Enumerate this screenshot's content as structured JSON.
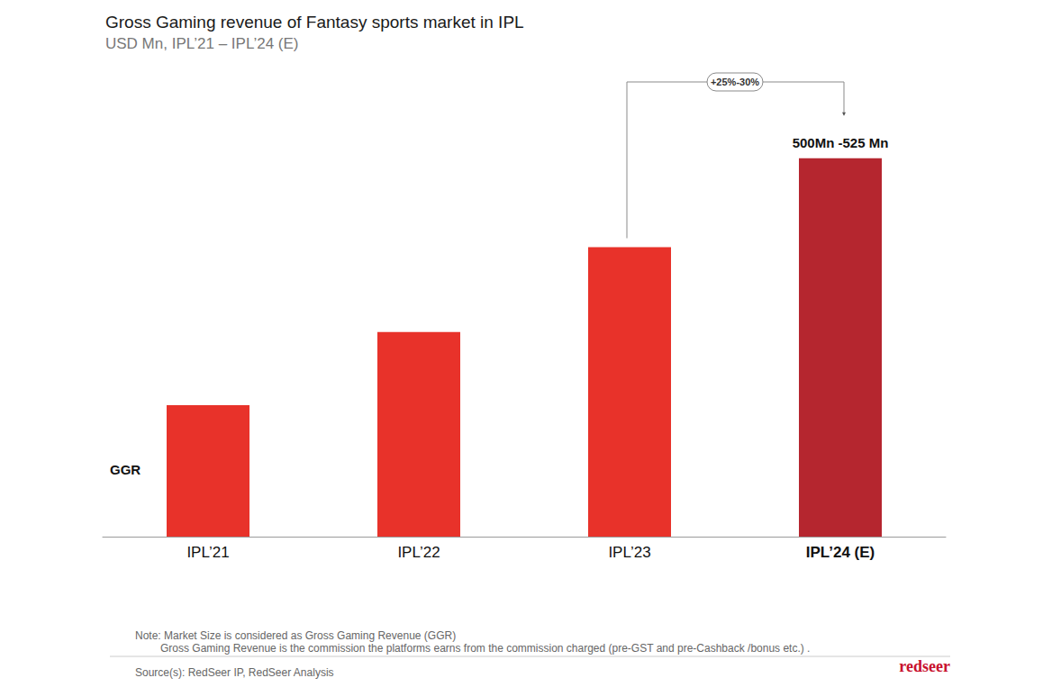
{
  "chart_data": {
    "type": "bar",
    "title": "Gross Gaming revenue of Fantasy sports market in IPL",
    "subtitle": "USD Mn, IPL’21 – IPL’24 (E)",
    "categories": [
      "IPL’21",
      "IPL’22",
      "IPL’23",
      "IPL’24 (E)"
    ],
    "values": [
      178,
      277,
      392,
      512.5
    ],
    "value_labels": [
      null,
      null,
      null,
      "500Mn -525 Mn"
    ],
    "data_labels": true,
    "colors": [
      "#e8322a",
      "#e8322a",
      "#e8322a",
      "#b5262f"
    ],
    "series_label": "GGR",
    "ylim": [
      0,
      600
    ],
    "tick_labels": "x",
    "grid": false,
    "annotations": [
      {
        "text": "+25%-30%",
        "from": "IPL’23",
        "to": "IPL’24 (E)"
      }
    ],
    "notes": [
      "Note: Market Size is considered as Gross Gaming Revenue (GGR)",
      "Gross Gaming Revenue is the commission the platforms earns from the commission charged (pre-GST and pre-Cashback /bonus etc.) ."
    ],
    "source": "Source(s): RedSeer IP, RedSeer Analysis",
    "logo": "redseer"
  }
}
